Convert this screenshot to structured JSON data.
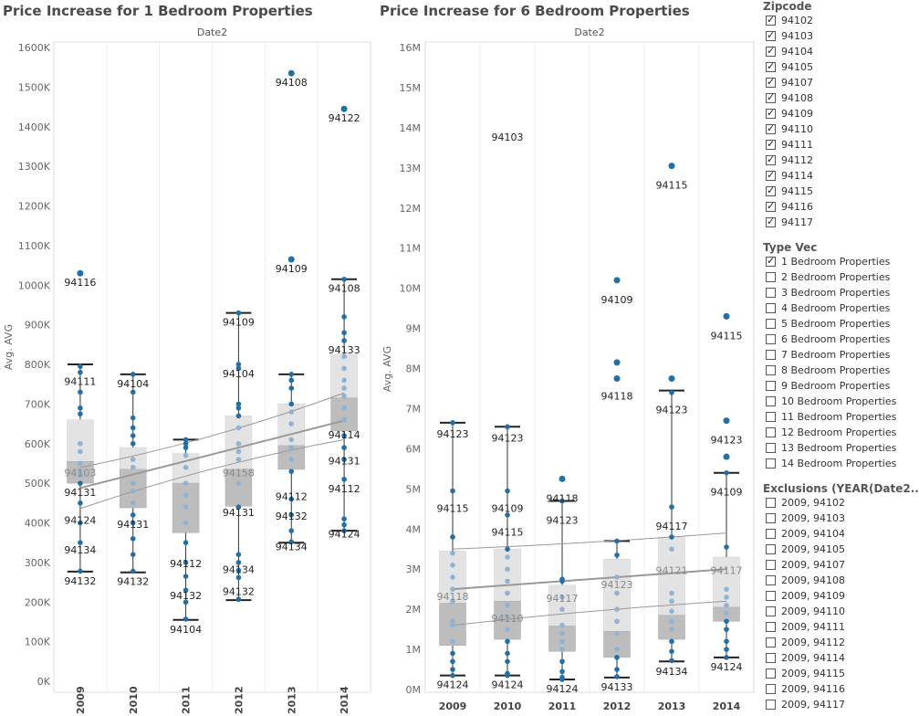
{
  "chart_data": [
    {
      "type": "boxplot",
      "title": "Price Increase for 1 Bedroom Properties",
      "column_header": "Date2",
      "ylabel": "Avg. AVG",
      "ylim": [
        0,
        1600000
      ],
      "yticks": [
        0,
        100000,
        200000,
        300000,
        400000,
        500000,
        600000,
        700000,
        800000,
        900000,
        1000000,
        1100000,
        1200000,
        1300000,
        1400000,
        1500000,
        1600000
      ],
      "ytick_labels": [
        "0K",
        "100K",
        "200K",
        "300K",
        "400K",
        "500K",
        "600K",
        "700K",
        "800K",
        "900K",
        "1000K",
        "1100K",
        "1200K",
        "1300K",
        "1400K",
        "1500K",
        "1600K"
      ],
      "categories": [
        "2009",
        "2010",
        "2011",
        "2012",
        "2013",
        "2014"
      ],
      "boxes": [
        {
          "whisker_low": 277000,
          "q1": 500000,
          "median": 555000,
          "q3": 660000,
          "whisker_high": 800000
        },
        {
          "whisker_low": 275000,
          "q1": 438000,
          "median": 535000,
          "q3": 590000,
          "whisker_high": 775000
        },
        {
          "whisker_low": 155000,
          "q1": 375000,
          "median": 500000,
          "q3": 575000,
          "whisker_high": 610000
        },
        {
          "whisker_low": 205000,
          "q1": 442000,
          "median": 535000,
          "q3": 670000,
          "whisker_high": 930000
        },
        {
          "whisker_low": 350000,
          "q1": 535000,
          "median": 595000,
          "q3": 700000,
          "whisker_high": 775000
        },
        {
          "whisker_low": 380000,
          "q1": 632000,
          "median": 715000,
          "q3": 825000,
          "whisker_high": 1015000
        }
      ],
      "points": [
        [
          1030000,
          795000,
          780000,
          730000,
          690000,
          675000,
          600000,
          580000,
          550000,
          530000,
          520000,
          500000,
          450000,
          400000,
          350000,
          278000
        ],
        [
          775000,
          730000,
          665000,
          640000,
          620000,
          600000,
          560000,
          540000,
          500000,
          480000,
          450000,
          420000,
          400000,
          360000,
          320000,
          278000
        ],
        [
          610000,
          600000,
          590000,
          570000,
          540000,
          500000,
          470000,
          440000,
          400000,
          350000,
          300000,
          265000,
          230000,
          200000,
          157000
        ],
        [
          930000,
          800000,
          790000,
          700000,
          690000,
          670000,
          640000,
          600000,
          580000,
          560000,
          500000,
          440000,
          320000,
          300000,
          280000,
          262000,
          207000
        ],
        [
          1535000,
          1065000,
          775000,
          760000,
          740000,
          700000,
          680000,
          650000,
          610000,
          590000,
          560000,
          530000,
          460000,
          420000,
          380000,
          352000
        ],
        [
          1445000,
          1015000,
          920000,
          880000,
          860000,
          820000,
          790000,
          760000,
          740000,
          720000,
          690000,
          660000,
          620000,
          590000,
          560000,
          510000,
          410000,
          395000,
          380000
        ]
      ],
      "labels": [
        [
          {
            "y": 1030000,
            "text": "94116",
            "in": false
          },
          {
            "y": 780000,
            "text": "94111",
            "in": false
          },
          {
            "y": 550000,
            "text": "94103",
            "in": true
          },
          {
            "y": 500000,
            "text": "94131",
            "in": false
          },
          {
            "y": 430000,
            "text": "94124",
            "in": false
          },
          {
            "y": 355000,
            "text": "94134",
            "in": false
          },
          {
            "y": 277000,
            "text": "94132",
            "in": false
          }
        ],
        [
          {
            "y": 775000,
            "text": "94104",
            "in": false
          },
          {
            "y": 420000,
            "text": "94131",
            "in": false
          },
          {
            "y": 275000,
            "text": "94132",
            "in": false
          }
        ],
        [
          {
            "y": 320000,
            "text": "94112",
            "in": false
          },
          {
            "y": 240000,
            "text": "94132",
            "in": false
          },
          {
            "y": 155000,
            "text": "94104",
            "in": false
          }
        ],
        [
          {
            "y": 930000,
            "text": "94109",
            "in": false
          },
          {
            "y": 800000,
            "text": "94104",
            "in": false
          },
          {
            "y": 550000,
            "text": "94158",
            "in": true
          },
          {
            "y": 450000,
            "text": "94131",
            "in": false
          },
          {
            "y": 305000,
            "text": "94134",
            "in": false
          },
          {
            "y": 250000,
            "text": "94132",
            "in": false
          }
        ],
        [
          {
            "y": 1535000,
            "text": "94108",
            "in": false
          },
          {
            "y": 1065000,
            "text": "94109",
            "in": false
          },
          {
            "y": 490000,
            "text": "94112",
            "in": false
          },
          {
            "y": 440000,
            "text": "94132",
            "in": false
          },
          {
            "y": 363000,
            "text": "94134",
            "in": false
          }
        ],
        [
          {
            "y": 1445000,
            "text": "94122",
            "in": false
          },
          {
            "y": 1015000,
            "text": "94108",
            "in": false
          },
          {
            "y": 860000,
            "text": "94133",
            "in": false
          },
          {
            "y": 645000,
            "text": "94114",
            "in": false
          },
          {
            "y": 580000,
            "text": "94131",
            "in": false
          },
          {
            "y": 510000,
            "text": "94112",
            "in": false
          },
          {
            "y": 395000,
            "text": "94124",
            "in": false
          }
        ]
      ],
      "trend": {
        "mid": [
          488000,
          658000
        ],
        "upper": [
          540000,
          728000
        ],
        "lower": [
          436000,
          610000
        ]
      }
    },
    {
      "type": "boxplot",
      "title": "Price Increase for 6 Bedroom Properties",
      "column_header": "Date2",
      "ylabel": "Avg. AVG",
      "ylim": [
        0,
        16000000
      ],
      "yticks": [
        0,
        1000000,
        2000000,
        3000000,
        4000000,
        5000000,
        6000000,
        7000000,
        8000000,
        9000000,
        10000000,
        11000000,
        12000000,
        13000000,
        14000000,
        15000000,
        16000000
      ],
      "ytick_labels": [
        "0M",
        "1M",
        "2M",
        "3M",
        "4M",
        "5M",
        "6M",
        "7M",
        "8M",
        "9M",
        "10M",
        "11M",
        "12M",
        "13M",
        "14M",
        "15M",
        "16M"
      ],
      "categories": [
        "2009",
        "2010",
        "2011",
        "2012",
        "2013",
        "2014"
      ],
      "boxes": [
        {
          "whisker_low": 350000,
          "q1": 1100000,
          "median": 2150000,
          "q3": 3450000,
          "whisker_high": 6650000
        },
        {
          "whisker_low": 350000,
          "q1": 1250000,
          "median": 2200000,
          "q3": 3500000,
          "whisker_high": 6550000
        },
        {
          "whisker_low": 250000,
          "q1": 950000,
          "median": 1580000,
          "q3": 2600000,
          "whisker_high": 4700000
        },
        {
          "whisker_low": 300000,
          "q1": 800000,
          "median": 1450000,
          "q3": 3250000,
          "whisker_high": 3700000
        },
        {
          "whisker_low": 700000,
          "q1": 1250000,
          "median": 1850000,
          "q3": 3800000,
          "whisker_high": 7450000
        },
        {
          "whisker_low": 800000,
          "q1": 1700000,
          "median": 2050000,
          "q3": 3300000,
          "whisker_high": 5400000
        }
      ],
      "points": [
        [
          6650000,
          4950000,
          3800000,
          3400000,
          3100000,
          2800000,
          2500000,
          2200000,
          1700000,
          1600000,
          1200000,
          900000,
          700000,
          500000,
          350000
        ],
        [
          6550000,
          4950000,
          4350000,
          3500000,
          3300000,
          3000000,
          2700000,
          2400000,
          2100000,
          1800000,
          1500000,
          1200000,
          900000,
          700000,
          400000,
          350000
        ],
        [
          5250000,
          4700000,
          2750000,
          2700000,
          2300000,
          2000000,
          1600000,
          1400000,
          1200000,
          1000000,
          700000,
          450000,
          300000,
          250000
        ],
        [
          10200000,
          8150000,
          7750000,
          3700000,
          3350000,
          2800000,
          2400000,
          2000000,
          1700000,
          1400000,
          1000000,
          800000,
          500000,
          320000
        ],
        [
          13050000,
          7750000,
          7400000,
          4550000,
          3800000,
          3500000,
          2400000,
          2200000,
          1950000,
          1700000,
          1500000,
          1200000,
          950000,
          720000
        ],
        [
          9300000,
          6700000,
          5800000,
          5400000,
          3550000,
          2500000,
          2300000,
          2100000,
          1900000,
          1700000,
          1500000,
          1200000,
          1000000,
          800000
        ]
      ],
      "labels": [
        [
          {
            "y": 6600000,
            "text": "94123",
            "in": false
          },
          {
            "y": 4750000,
            "text": "94115",
            "in": false
          },
          {
            "y": 2550000,
            "text": "94118",
            "in": true
          },
          {
            "y": 350000,
            "text": "94124",
            "in": false
          }
        ],
        [
          {
            "y": 14000000,
            "text": "94103",
            "in": false
          },
          {
            "y": 6500000,
            "text": "94123",
            "in": false
          },
          {
            "y": 4750000,
            "text": "94109",
            "in": false
          },
          {
            "y": 4150000,
            "text": "94115",
            "in": false
          },
          {
            "y": 2000000,
            "text": "94110",
            "in": true
          },
          {
            "y": 350000,
            "text": "94124",
            "in": false
          }
        ],
        [
          {
            "y": 5000000,
            "text": "94118",
            "in": false
          },
          {
            "y": 4450000,
            "text": "94123",
            "in": false
          },
          {
            "y": 2500000,
            "text": "94117",
            "in": true
          },
          {
            "y": 250000,
            "text": "94124",
            "in": false
          }
        ],
        [
          {
            "y": 9950000,
            "text": "94109",
            "in": false
          },
          {
            "y": 7550000,
            "text": "94118",
            "in": false
          },
          {
            "y": 2850000,
            "text": "94123",
            "in": true
          },
          {
            "y": 300000,
            "text": "94133",
            "in": false
          }
        ],
        [
          {
            "y": 12800000,
            "text": "94115",
            "in": false
          },
          {
            "y": 7200000,
            "text": "94123",
            "in": false
          },
          {
            "y": 4300000,
            "text": "94117",
            "in": false
          },
          {
            "y": 3200000,
            "text": "94121",
            "in": true
          },
          {
            "y": 680000,
            "text": "94134",
            "in": false
          }
        ],
        [
          {
            "y": 9050000,
            "text": "94115",
            "in": false
          },
          {
            "y": 6450000,
            "text": "94123",
            "in": false
          },
          {
            "y": 5150000,
            "text": "94109",
            "in": false
          },
          {
            "y": 3200000,
            "text": "94117",
            "in": true
          },
          {
            "y": 800000,
            "text": "94124",
            "in": false
          }
        ]
      ],
      "trend": {
        "mid": [
          2500000,
          3000000
        ],
        "upper": [
          3500000,
          3900000
        ],
        "lower": [
          1600000,
          2200000
        ]
      }
    }
  ],
  "legend": {
    "zipcode": {
      "title": "Zipcode",
      "items": [
        {
          "label": "94102",
          "checked": true
        },
        {
          "label": "94103",
          "checked": true
        },
        {
          "label": "94104",
          "checked": true
        },
        {
          "label": "94105",
          "checked": true
        },
        {
          "label": "94107",
          "checked": true
        },
        {
          "label": "94108",
          "checked": true
        },
        {
          "label": "94109",
          "checked": true
        },
        {
          "label": "94110",
          "checked": true
        },
        {
          "label": "94111",
          "checked": true
        },
        {
          "label": "94112",
          "checked": true
        },
        {
          "label": "94114",
          "checked": true
        },
        {
          "label": "94115",
          "checked": true
        },
        {
          "label": "94116",
          "checked": true
        },
        {
          "label": "94117",
          "checked": true
        }
      ]
    },
    "type_vec": {
      "title": "Type Vec",
      "items": [
        {
          "label": "1 Bedroom Properties",
          "checked": true
        },
        {
          "label": "2 Bedroom Properties",
          "checked": false
        },
        {
          "label": "3 Bedroom Properties",
          "checked": false
        },
        {
          "label": "4 Bedroom Properties",
          "checked": false
        },
        {
          "label": "5 Bedroom Properties",
          "checked": false
        },
        {
          "label": "6 Bedroom Properties",
          "checked": false
        },
        {
          "label": "7 Bedroom Properties",
          "checked": false
        },
        {
          "label": "8 Bedroom Properties",
          "checked": false
        },
        {
          "label": "9 Bedroom Properties",
          "checked": false
        },
        {
          "label": "10 Bedroom Properties",
          "checked": false
        },
        {
          "label": "11 Bedroom Properties",
          "checked": false
        },
        {
          "label": "12 Bedroom Properties",
          "checked": false
        },
        {
          "label": "13 Bedroom Properties",
          "checked": false
        },
        {
          "label": "14 Bedroom Properties",
          "checked": false
        }
      ]
    },
    "exclusions": {
      "title": "Exclusions (YEAR(Date2..",
      "items": [
        {
          "label": "2009, 94102",
          "checked": false
        },
        {
          "label": "2009, 94103",
          "checked": false
        },
        {
          "label": "2009, 94104",
          "checked": false
        },
        {
          "label": "2009, 94105",
          "checked": false
        },
        {
          "label": "2009, 94107",
          "checked": false
        },
        {
          "label": "2009, 94108",
          "checked": false
        },
        {
          "label": "2009, 94109",
          "checked": false
        },
        {
          "label": "2009, 94110",
          "checked": false
        },
        {
          "label": "2009, 94111",
          "checked": false
        },
        {
          "label": "2009, 94112",
          "checked": false
        },
        {
          "label": "2009, 94114",
          "checked": false
        },
        {
          "label": "2009, 94115",
          "checked": false
        },
        {
          "label": "2009, 94116",
          "checked": false
        },
        {
          "label": "2009, 94117",
          "checked": false
        }
      ]
    }
  },
  "colors": {
    "point": "#1f6fab",
    "point_faded": "#8fb3d3",
    "box_upper": "#e3e3e3",
    "box_lower": "#bdbdbd",
    "trend": "#999999"
  }
}
